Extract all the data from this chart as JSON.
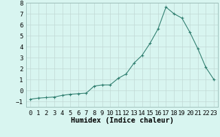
{
  "x": [
    0,
    1,
    2,
    3,
    4,
    5,
    6,
    7,
    8,
    9,
    10,
    11,
    12,
    13,
    14,
    15,
    16,
    17,
    18,
    19,
    20,
    21,
    22,
    23
  ],
  "y": [
    -0.8,
    -0.7,
    -0.65,
    -0.6,
    -0.45,
    -0.35,
    -0.3,
    -0.25,
    0.4,
    0.5,
    0.5,
    1.1,
    1.5,
    2.5,
    3.2,
    4.3,
    5.6,
    7.6,
    7.0,
    6.6,
    5.3,
    3.8,
    2.1,
    1.0
  ],
  "title": "",
  "xlabel": "Humidex (Indice chaleur)",
  "ylabel": "",
  "line_color": "#2e7d6e",
  "marker": "+",
  "bg_color": "#d8f5f0",
  "grid_color": "#c0d8d4",
  "ylim": [
    -1.5,
    8.0
  ],
  "xlim": [
    -0.5,
    23.5
  ],
  "tick_label_fontsize": 6.5,
  "xlabel_fontsize": 7.5
}
